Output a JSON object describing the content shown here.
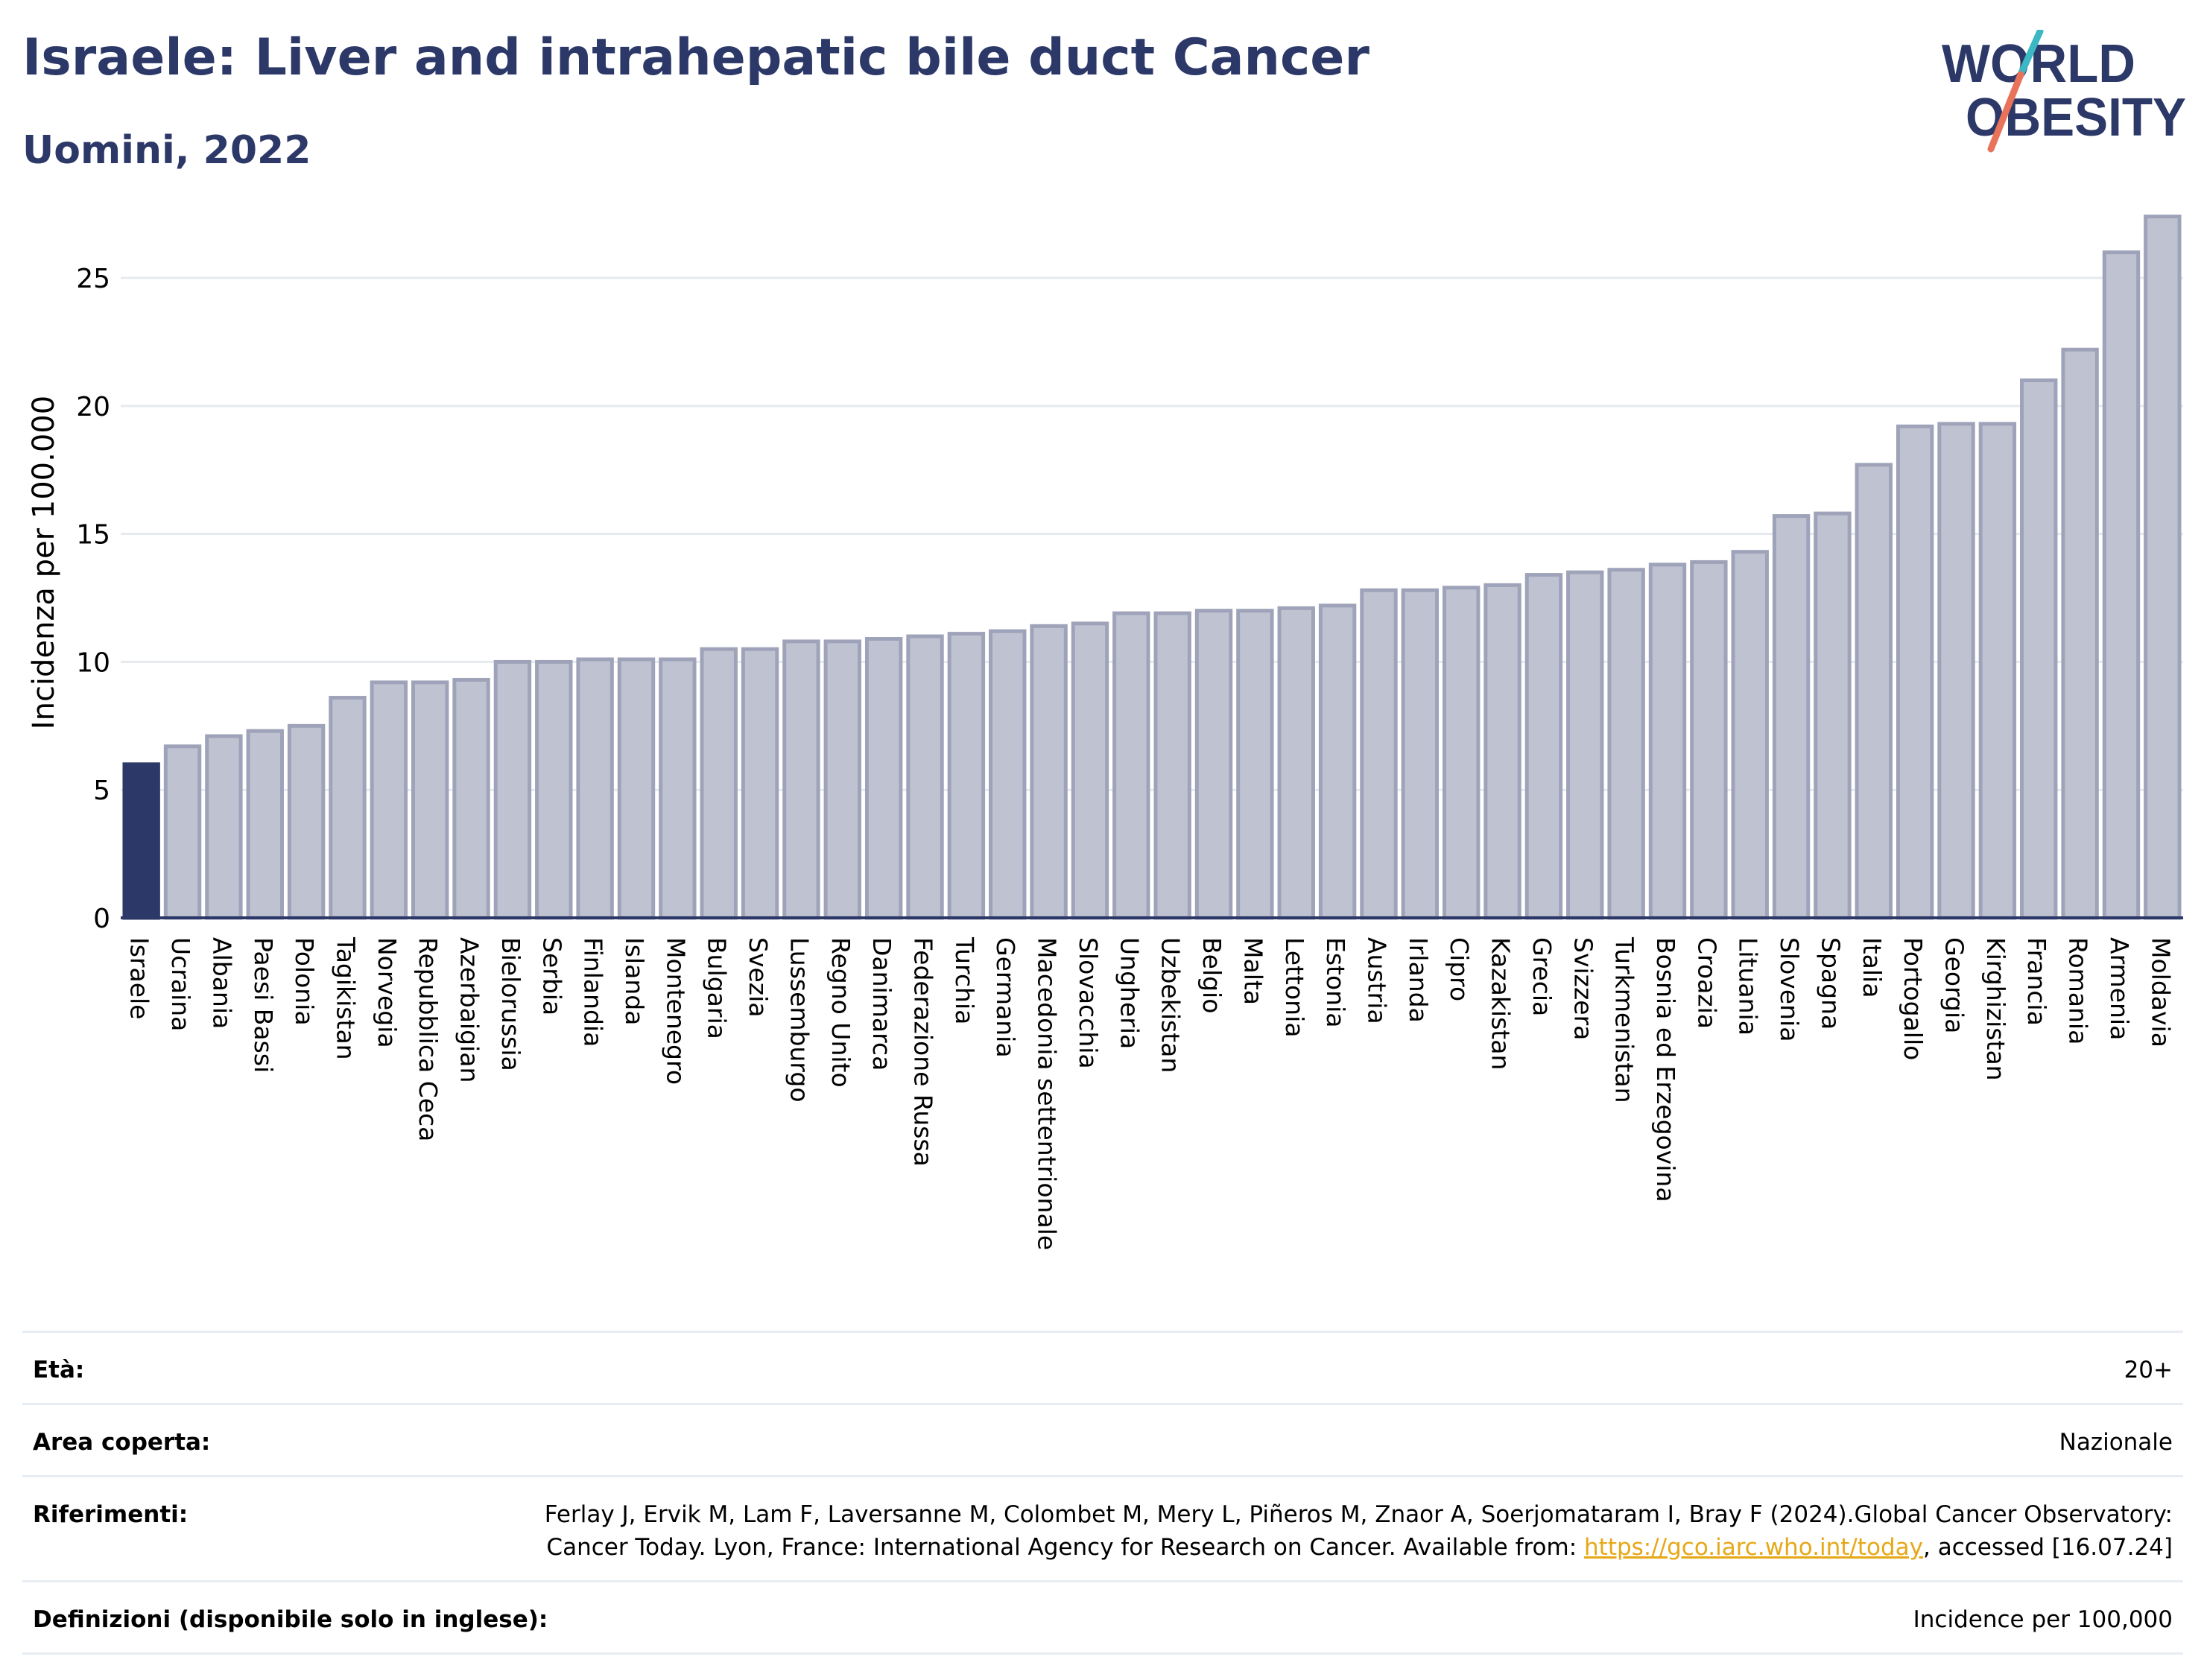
{
  "header": {
    "title": "Israele: Liver and intrahepatic bile duct Cancer",
    "subtitle": "Uomini, 2022"
  },
  "logo": {
    "line1": "WORLD",
    "line2": "OBESITY",
    "colors": {
      "text": "#2c3867",
      "slash_top": "#3bb8c3",
      "slash_bottom": "#e8735a"
    }
  },
  "chart_data": {
    "type": "bar",
    "ylabel": "Incidenza per 100.000",
    "xlabel": "",
    "ylim": [
      0,
      28
    ],
    "yticks": [
      0,
      5,
      10,
      15,
      20,
      25
    ],
    "grid": true,
    "highlight_category": "Israele",
    "colors": {
      "highlight": "#2c3867",
      "bar_fill": "#bfc3d1",
      "bar_stroke": "#9ea3b9",
      "grid": "#e6e9ef",
      "axis": "#2c3867"
    },
    "categories": [
      "Israele",
      "Ucraina",
      "Albania",
      "Paesi Bassi",
      "Polonia",
      "Tagikistan",
      "Norvegia",
      "Repubblica Ceca",
      "Azerbaigian",
      "Bielorussia",
      "Serbia",
      "Finlandia",
      "Islanda",
      "Montenegro",
      "Bulgaria",
      "Svezia",
      "Lussemburgo",
      "Regno Unito",
      "Danimarca",
      "Federazione Russa",
      "Turchia",
      "Germania",
      "Macedonia settentrionale",
      "Slovacchia",
      "Ungheria",
      "Uzbekistan",
      "Belgio",
      "Malta",
      "Lettonia",
      "Estonia",
      "Austria",
      "Irlanda",
      "Cipro",
      "Kazakistan",
      "Grecia",
      "Svizzera",
      "Turkmenistan",
      "Bosnia ed Erzegovina",
      "Croazia",
      "Lituania",
      "Slovenia",
      "Spagna",
      "Italia",
      "Portogallo",
      "Georgia",
      "Kirghizistan",
      "Francia",
      "Romania",
      "Armenia",
      "Moldavia"
    ],
    "values": [
      6.0,
      6.7,
      7.1,
      7.3,
      7.5,
      8.6,
      9.2,
      9.2,
      9.3,
      10.0,
      10.0,
      10.1,
      10.1,
      10.1,
      10.5,
      10.5,
      10.8,
      10.8,
      10.9,
      11.0,
      11.1,
      11.2,
      11.4,
      11.5,
      11.9,
      11.9,
      12.0,
      12.0,
      12.1,
      12.2,
      12.8,
      12.8,
      12.9,
      13.0,
      13.4,
      13.5,
      13.6,
      13.8,
      13.9,
      14.3,
      15.7,
      15.8,
      17.7,
      19.2,
      19.3,
      19.3,
      21.0,
      22.2,
      26.0,
      27.4
    ]
  },
  "info": {
    "age_label": "Età:",
    "age_value": "20+",
    "area_label": "Area coperta:",
    "area_value": "Nazionale",
    "refs_label": "Riferimenti:",
    "refs_text_1": "Ferlay J, Ervik M, Lam F, Laversanne M, Colombet M, Mery L, Piñeros M, Znaor A, Soerjomataram I, Bray F (2024).Global Cancer Observatory: Cancer Today. Lyon, France: International Agency for Research on Cancer. Available from: ",
    "refs_link": "https://gco.iarc.who.int/today",
    "refs_text_2": ", accessed [16.07.24]",
    "defs_label": "Definizioni (disponibile solo in inglese):",
    "defs_value": "Incidence per 100,000"
  }
}
